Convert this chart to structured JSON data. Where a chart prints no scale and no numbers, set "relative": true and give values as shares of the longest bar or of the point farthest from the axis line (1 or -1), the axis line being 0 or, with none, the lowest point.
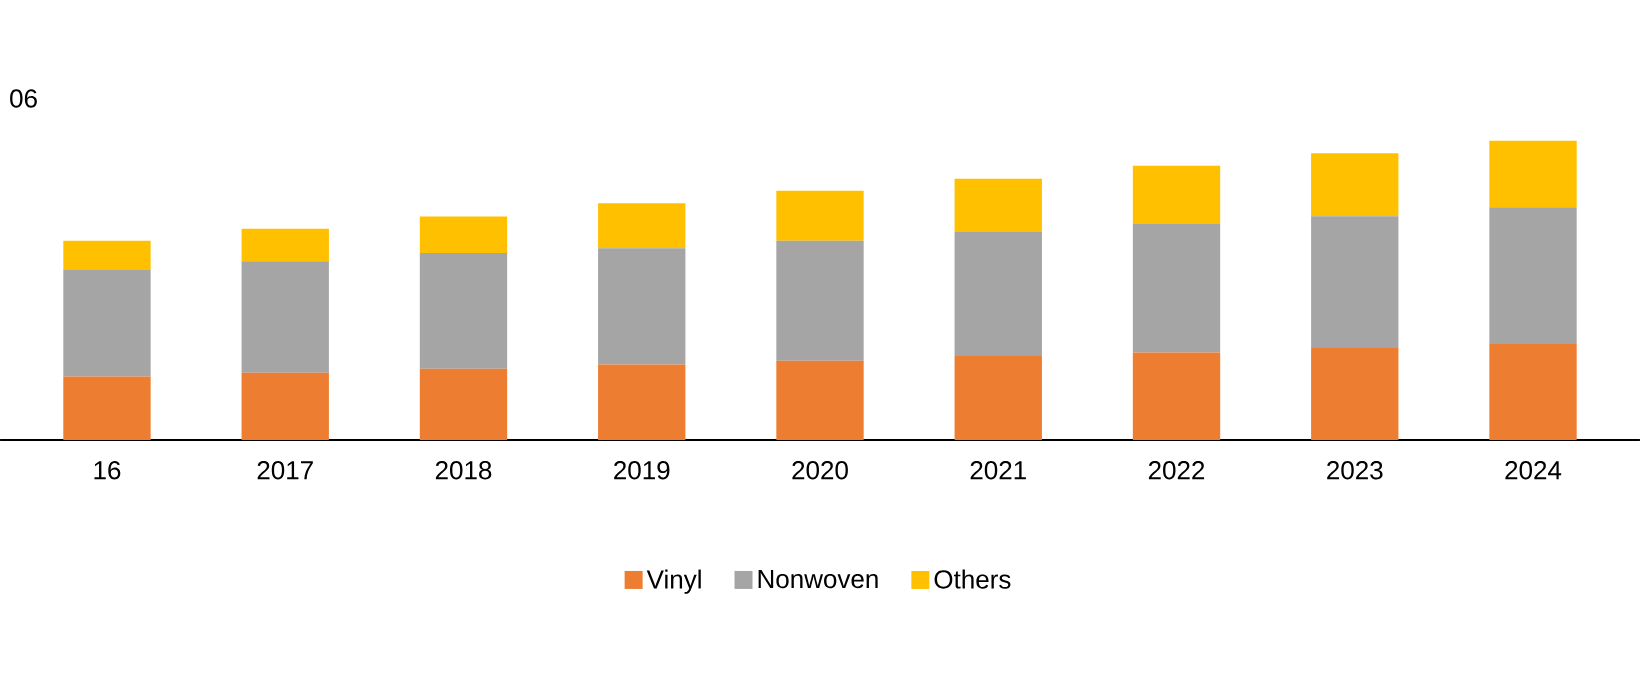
{
  "chart_data": {
    "type": "bar",
    "stacked": true,
    "relative": true,
    "legend": "bottom",
    "categories": [
      "16",
      "2017",
      "2018",
      "2019",
      "2020",
      "2021",
      "2022",
      "2023",
      "2024"
    ],
    "series": [
      {
        "name": "Vinyl",
        "color": "#ed7d31",
        "values": [
          0.212,
          0.225,
          0.238,
          0.252,
          0.265,
          0.281,
          0.292,
          0.307,
          0.321
        ]
      },
      {
        "name": "Nonwoven",
        "color": "#a5a5a5",
        "values": [
          0.356,
          0.372,
          0.387,
          0.389,
          0.401,
          0.414,
          0.43,
          0.441,
          0.457
        ]
      },
      {
        "name": "Others",
        "color": "#ffc000",
        "values": [
          0.098,
          0.109,
          0.122,
          0.15,
          0.167,
          0.178,
          0.194,
          0.21,
          0.222
        ]
      }
    ],
    "annotations": [
      "06"
    ]
  }
}
